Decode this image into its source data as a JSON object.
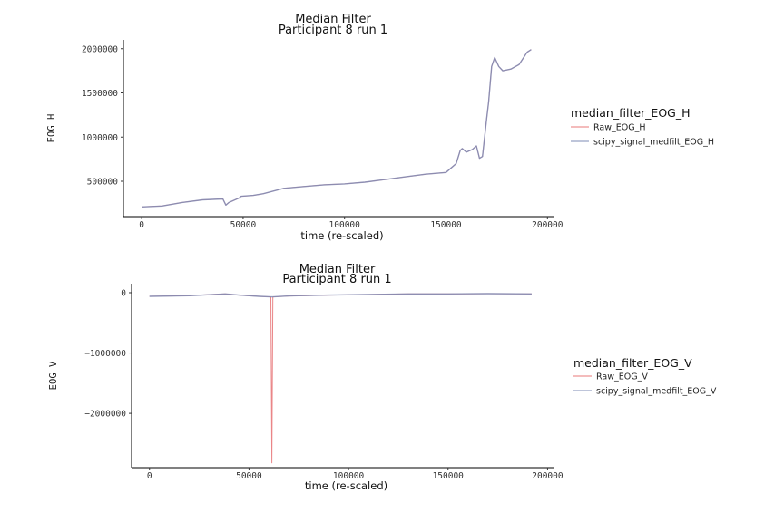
{
  "chart_data": [
    {
      "type": "line",
      "title": [
        "Median Filter",
        "Participant 8 run 1"
      ],
      "xlabel": "time (re-scaled)",
      "ylabel": "EOG H",
      "xlim": [
        -9000,
        203000
      ],
      "ylim": [
        100000,
        2100000
      ],
      "x_ticks": [
        0,
        50000,
        100000,
        150000,
        200000
      ],
      "y_ticks": [
        500000,
        1000000,
        1500000,
        2000000
      ],
      "legend_title": "median_filter_EOG_H",
      "legend_position": "right",
      "grid": false,
      "series": [
        {
          "name": "Raw_EOG_H",
          "color": "#e8787a",
          "x": [
            0,
            10000,
            20000,
            30000,
            40000,
            41500,
            43000,
            48000,
            49000,
            55000,
            60000,
            70000,
            80000,
            90000,
            100000,
            110000,
            120000,
            130000,
            140000,
            150000,
            152000,
            155000,
            157000,
            158000,
            160000,
            163000,
            165000,
            166500,
            168000,
            170000,
            171000,
            172500,
            174000,
            176000,
            178000,
            182000,
            186000,
            190000,
            192000
          ],
          "values": [
            210000,
            220000,
            260000,
            290000,
            300000,
            230000,
            260000,
            310000,
            330000,
            340000,
            360000,
            420000,
            440000,
            460000,
            470000,
            490000,
            520000,
            550000,
            580000,
            600000,
            640000,
            700000,
            850000,
            870000,
            830000,
            860000,
            900000,
            760000,
            780000,
            1200000,
            1400000,
            1800000,
            1900000,
            1800000,
            1750000,
            1770000,
            1820000,
            1960000,
            1990000
          ]
        },
        {
          "name": "scipy_signal_medfilt_EOG_H",
          "color": "#7c8bb5",
          "x": [
            0,
            10000,
            20000,
            30000,
            40000,
            41500,
            43000,
            48000,
            49000,
            55000,
            60000,
            70000,
            80000,
            90000,
            100000,
            110000,
            120000,
            130000,
            140000,
            150000,
            152000,
            155000,
            157000,
            158000,
            160000,
            163000,
            165000,
            166500,
            168000,
            170000,
            171000,
            172500,
            174000,
            176000,
            178000,
            182000,
            186000,
            190000,
            192000
          ],
          "values": [
            210000,
            220000,
            260000,
            290000,
            300000,
            230000,
            260000,
            310000,
            330000,
            340000,
            360000,
            420000,
            440000,
            460000,
            470000,
            490000,
            520000,
            550000,
            580000,
            600000,
            640000,
            700000,
            850000,
            870000,
            830000,
            860000,
            900000,
            760000,
            780000,
            1200000,
            1400000,
            1800000,
            1900000,
            1800000,
            1750000,
            1770000,
            1820000,
            1960000,
            1990000
          ]
        }
      ]
    },
    {
      "type": "line",
      "title": [
        "Median Filter",
        "Participant 8 run 1"
      ],
      "xlabel": "time (re-scaled)",
      "ylabel": "EOG V",
      "xlim": [
        -9000,
        203000
      ],
      "ylim": [
        -2900000,
        150000
      ],
      "x_ticks": [
        0,
        50000,
        100000,
        150000,
        200000
      ],
      "y_ticks": [
        -2000000,
        -1000000,
        0
      ],
      "legend_title": "median_filter_EOG_V",
      "legend_position": "right",
      "grid": false,
      "series": [
        {
          "name": "Raw_EOG_V",
          "color": "#e8787a",
          "x": [
            0,
            20000,
            38000,
            45000,
            55000,
            61000,
            61500,
            62000,
            70000,
            90000,
            110000,
            130000,
            150000,
            170000,
            192000
          ],
          "values": [
            -60000,
            -50000,
            -20000,
            -40000,
            -60000,
            -70000,
            -2820000,
            -70000,
            -55000,
            -40000,
            -30000,
            -20000,
            -20000,
            -15000,
            -20000
          ]
        },
        {
          "name": "scipy_signal_medfilt_EOG_V",
          "color": "#7c8bb5",
          "x": [
            0,
            20000,
            38000,
            45000,
            55000,
            61000,
            62000,
            70000,
            90000,
            110000,
            130000,
            150000,
            170000,
            192000
          ],
          "values": [
            -60000,
            -50000,
            -20000,
            -40000,
            -60000,
            -70000,
            -70000,
            -55000,
            -40000,
            -30000,
            -20000,
            -20000,
            -15000,
            -20000
          ]
        }
      ]
    }
  ]
}
